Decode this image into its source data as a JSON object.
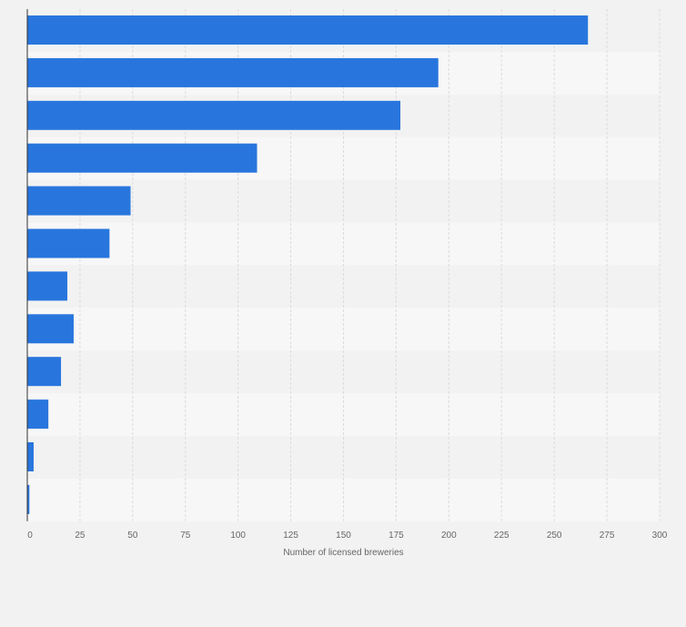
{
  "chart_data": {
    "type": "bar",
    "orientation": "horizontal",
    "title": "",
    "xlabel": "Number of licensed breweries",
    "ylabel": "",
    "categories": [
      "",
      "",
      "",
      "",
      "",
      "",
      "",
      "",
      "",
      "",
      "",
      ""
    ],
    "values": [
      266,
      195,
      177,
      109,
      49,
      39,
      19,
      22,
      16,
      10,
      3,
      1
    ],
    "xlim": [
      0,
      300
    ],
    "xticks": [
      0,
      25,
      50,
      75,
      100,
      125,
      150,
      175,
      200,
      225,
      250,
      275,
      300
    ],
    "grid": true
  },
  "colors": {
    "bar": "#2876dd",
    "band_dark": "#f2f2f2",
    "band_light": "#f7f7f7",
    "grid": "#dcdcdc",
    "axis": "#333333",
    "page": "#f2f2f2"
  }
}
